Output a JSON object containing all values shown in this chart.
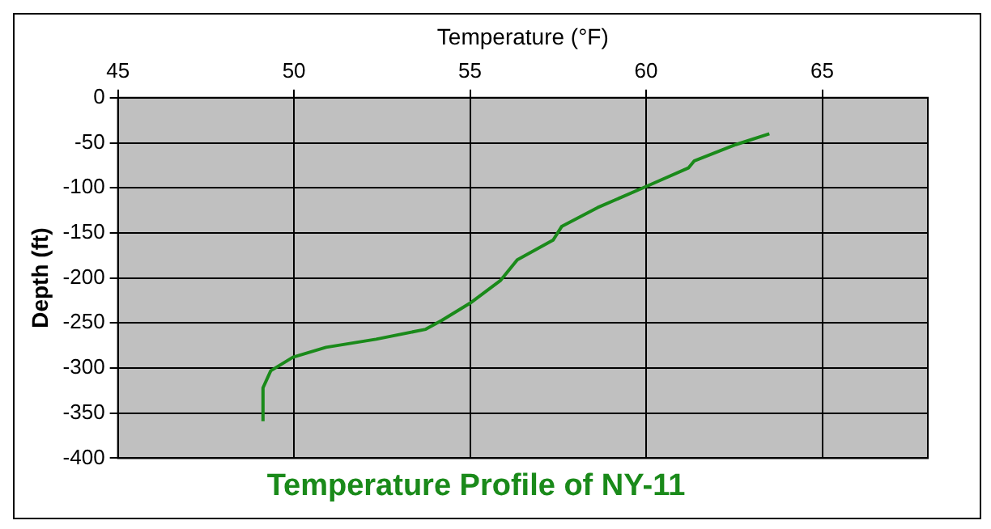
{
  "chart_data": {
    "type": "line",
    "title": "Temperature Profile of NY-11",
    "xlabel": "Temperature (°F)",
    "ylabel": "Depth (ft)",
    "x": [
      49.12,
      49.12,
      49.34,
      49.97,
      50.91,
      52.33,
      53.74,
      54.2,
      55.0,
      55.86,
      56.34,
      57.36,
      57.6,
      58.62,
      60.03,
      61.2,
      61.37,
      62.55,
      63.5
    ],
    "series": [
      {
        "color": "#1a8a1a",
        "values": [
          -359,
          -322,
          -303,
          -288,
          -277,
          -268,
          -257,
          -247,
          -228,
          -203,
          -180,
          -158,
          -143,
          -122,
          -98,
          -78,
          -70,
          -52,
          -40
        ]
      }
    ],
    "xlim": [
      45,
      68
    ],
    "xticks": [
      45,
      50,
      55,
      60,
      65
    ],
    "ylim": [
      -400,
      0
    ],
    "yticks": [
      -400,
      -350,
      -300,
      -250,
      -200,
      -150,
      -100,
      -50,
      0
    ],
    "grid": true,
    "legend": false,
    "marker": "none",
    "line_style": "solid"
  }
}
